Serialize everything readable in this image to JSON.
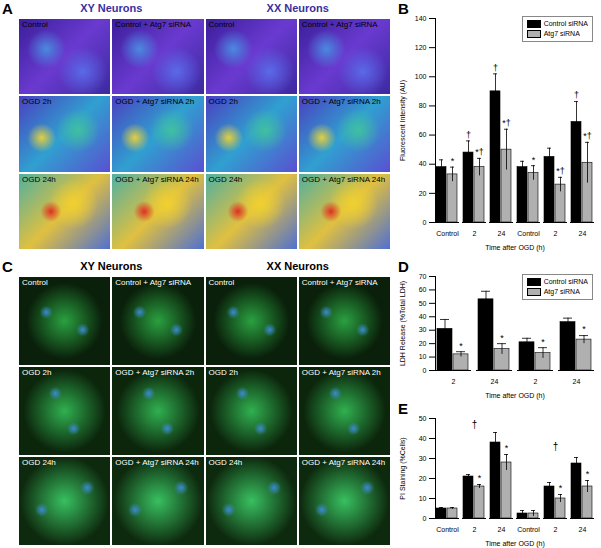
{
  "chart_data": [
    {
      "panel": "A",
      "type": "image_grid",
      "column_headers": [
        "XY Neurons",
        "XX Neurons"
      ],
      "cells": [
        [
          "Control",
          "Control + Atg7 siRNA",
          "Control",
          "Control + Atg7 siRNA"
        ],
        [
          "OGD 2h",
          "OGD + Atg7 siRNA 2h",
          "OGD 2h",
          "OGD + Atg7 siRNA 2h"
        ],
        [
          "OGD 24h",
          "OGD + Atg7 siRNA 24h",
          "OGD 24h",
          "OGD + Atg7 siRNA 24h"
        ]
      ]
    },
    {
      "panel": "B",
      "type": "bar",
      "x_label": "Time after OGD (h)",
      "y_label": "Fluorescent Intensity (AU)",
      "categories": [
        "Control",
        "2",
        "24",
        "Control",
        "2",
        "24"
      ],
      "series": [
        {
          "name": "Control siRNA",
          "color": "#000000",
          "values": [
            38,
            48,
            90,
            38,
            45,
            69
          ],
          "errors": [
            5,
            8,
            12,
            4,
            6,
            14
          ],
          "symbols": [
            null,
            "†",
            "†",
            null,
            null,
            "†"
          ]
        },
        {
          "name": "Atg7 siRNA",
          "color": "#b0b0b0",
          "values": [
            33,
            38,
            50,
            34,
            26,
            41
          ],
          "errors": [
            5,
            6,
            14,
            5,
            5,
            14
          ],
          "symbols": [
            "*",
            "*†",
            "*†",
            "*",
            "*†",
            "*†"
          ]
        }
      ],
      "ylim": [
        0,
        140
      ],
      "yticks": [
        0,
        20,
        40,
        60,
        80,
        100,
        120,
        140
      ],
      "legend": "top-right",
      "grid": false
    },
    {
      "panel": "C",
      "type": "image_grid",
      "column_headers": [
        "XY Neurons",
        "XX Neurons"
      ],
      "cells": [
        [
          "Control",
          "Control + Atg7 siRNA",
          "Control",
          "Control + Atg7 siRNA"
        ],
        [
          "OGD 2h",
          "OGD + Atg7 siRNA 2h",
          "OGD 2h",
          "OGD + Atg7 siRNA 2h"
        ],
        [
          "OGD 24h",
          "OGD + Atg7 siRNA 24h",
          "OGD 24h",
          "OGD + Atg7 siRNA 24h"
        ]
      ]
    },
    {
      "panel": "D",
      "type": "bar",
      "x_label": "Time after OGD (h)",
      "y_label": "LDH Release (%Total LDH)",
      "categories": [
        "2",
        "24",
        "2",
        "24"
      ],
      "series": [
        {
          "name": "Control siRNA",
          "color": "#000000",
          "values": [
            31,
            53,
            21,
            36
          ],
          "errors": [
            7,
            6,
            3,
            3
          ],
          "symbols": [
            null,
            null,
            null,
            null
          ]
        },
        {
          "name": "Atg7 siRNA",
          "color": "#b0b0b0",
          "values": [
            12,
            16,
            13,
            23
          ],
          "errors": [
            2,
            4,
            4,
            3
          ],
          "symbols": [
            "*",
            "*",
            "*",
            "*"
          ]
        }
      ],
      "ylim": [
        0,
        70
      ],
      "yticks": [
        0,
        10,
        20,
        30,
        40,
        50,
        60,
        70
      ],
      "legend": "top-right",
      "grid": false
    },
    {
      "panel": "E",
      "type": "bar",
      "x_label": "Time after OGD (h)",
      "y_label": "PI Staining (%Cells)",
      "categories": [
        "Control",
        "2",
        "24",
        "Control",
        "2",
        "24"
      ],
      "series": [
        {
          "name": "Control siRNA",
          "color": "#000000",
          "values": [
            5,
            21,
            38,
            2.5,
            16,
            27.5
          ],
          "errors": [
            0.5,
            1,
            5,
            1.5,
            2,
            3
          ],
          "symbols": [
            null,
            null,
            null,
            null,
            null,
            null
          ]
        },
        {
          "name": "Atg7 siRNA",
          "color": "#b0b0b0",
          "values": [
            5,
            16,
            28,
            2.5,
            10,
            16
          ],
          "errors": [
            0.5,
            1,
            4,
            1.5,
            2,
            3
          ],
          "symbols": [
            null,
            "*",
            "*",
            null,
            "*",
            "*"
          ]
        }
      ],
      "annotations": [
        {
          "text": "†",
          "category": 1,
          "y": 47
        },
        {
          "text": "†",
          "category": 4,
          "y": 36
        }
      ],
      "ylim": [
        0,
        50
      ],
      "yticks": [
        0,
        10,
        20,
        30,
        40,
        50
      ],
      "grid": false
    }
  ]
}
